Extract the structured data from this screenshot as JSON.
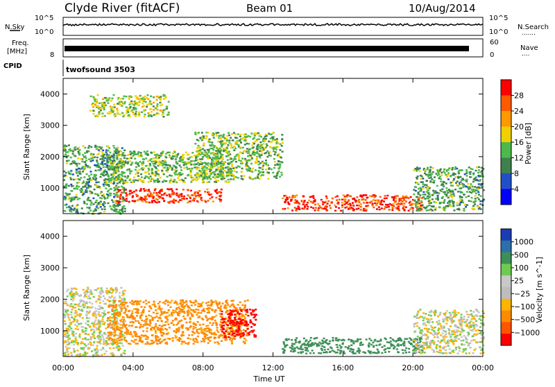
{
  "header": {
    "station": "Clyde River (fitACF)",
    "beam": "Beam 01",
    "date": "10/Aug/2014"
  },
  "nsky": {
    "left_label": "N.Sky",
    "right_label": "N.Search",
    "right_dots": ".......",
    "tick_top": "10^5",
    "tick_bottom": "10^0"
  },
  "freq": {
    "left_label": "Freq.",
    "left_unit": "[MHz]",
    "tick_top": "",
    "tick_bottom": "8",
    "right_label": "Nave",
    "right_dots": "....",
    "right_tick_top": "60",
    "right_tick_bottom": "0"
  },
  "cpid": {
    "label": "CPID",
    "value": "twofsound 3503"
  },
  "time_axis": {
    "title": "Time UT",
    "ticks": [
      "00:00",
      "04:00",
      "08:00",
      "12:00",
      "16:00",
      "20:00",
      "00:00"
    ]
  },
  "colors": {
    "power_scale": [
      "#0000ff",
      "#2050c8",
      "#40804c",
      "#4cba4a",
      "#f0d000",
      "#ff9900",
      "#ff5a00",
      "#ff0000"
    ],
    "velocity_scale": [
      "#ff0000",
      "#ff5500",
      "#ff8a00",
      "#ffb400",
      "#bdbdbd",
      "#c8c8c8",
      "#6dcc4f",
      "#3d8f57",
      "#2d6fa8",
      "#1a3cb4"
    ]
  },
  "chart_data": [
    {
      "type": "heatmap",
      "name": "power",
      "ylabel": "Slant Range [km]",
      "xlabel": "Time UT",
      "xlim": [
        0,
        24
      ],
      "ylim": [
        180,
        4500
      ],
      "yticks": [
        "1000",
        "2000",
        "3000",
        "4000"
      ],
      "colorbar": {
        "label": "Power [dB]",
        "ticks": [
          "4",
          "8",
          "12",
          "16",
          "20",
          "24",
          "28"
        ],
        "range": [
          0,
          32
        ]
      },
      "echo_regions": [
        {
          "t0": 0.0,
          "t1": 3.5,
          "r0": 200,
          "r1": 2400,
          "level": 12
        },
        {
          "t0": 1.5,
          "t1": 6.0,
          "r0": 3300,
          "r1": 4000,
          "level": 16
        },
        {
          "t0": 2.5,
          "t1": 9.5,
          "r0": 1200,
          "r1": 2200,
          "level": 14
        },
        {
          "t0": 3.0,
          "t1": 9.0,
          "r0": 550,
          "r1": 1000,
          "level": 28
        },
        {
          "t0": 7.5,
          "t1": 12.5,
          "r0": 1300,
          "r1": 2800,
          "level": 14
        },
        {
          "t0": 12.5,
          "t1": 20.5,
          "r0": 300,
          "r1": 800,
          "level": 28
        },
        {
          "t0": 20.0,
          "t1": 24.0,
          "r0": 300,
          "r1": 1700,
          "level": 12
        }
      ]
    },
    {
      "type": "heatmap",
      "name": "velocity",
      "ylabel": "Slant Range [km]",
      "xlabel": "Time UT",
      "xlim": [
        0,
        24
      ],
      "ylim": [
        180,
        4500
      ],
      "yticks": [
        "1000",
        "2000",
        "3000",
        "4000"
      ],
      "colorbar": {
        "label": "Velocity [m s^-1]",
        "ticks": [
          "1000",
          "500",
          "100",
          "25",
          "−25",
          "−100",
          "−500",
          "−1000"
        ]
      },
      "echo_regions": [
        {
          "t0": 0.0,
          "t1": 3.5,
          "r0": 200,
          "r1": 2400,
          "velocity": 0
        },
        {
          "t0": 2.5,
          "t1": 10.5,
          "r0": 600,
          "r1": 2000,
          "velocity": -150
        },
        {
          "t0": 9.0,
          "t1": 11.0,
          "r0": 800,
          "r1": 1700,
          "velocity": -600
        },
        {
          "t0": 12.5,
          "t1": 20.5,
          "r0": 300,
          "r1": 800,
          "velocity": 200
        },
        {
          "t0": 20.0,
          "t1": 24.0,
          "r0": 300,
          "r1": 1700,
          "velocity": 0
        }
      ]
    }
  ]
}
